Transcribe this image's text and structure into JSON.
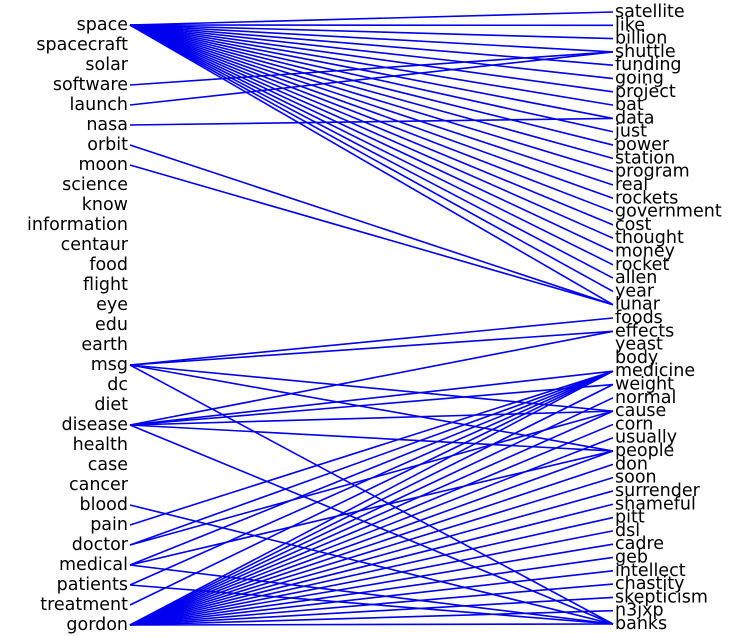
{
  "diagram": {
    "link_color": "#0000ee",
    "text_color": "#000000",
    "left_terms": [
      "space",
      "spacecraft",
      "solar",
      "software",
      "launch",
      "nasa",
      "orbit",
      "moon",
      "science",
      "know",
      "information",
      "centaur",
      "food",
      "flight",
      "eye",
      "edu",
      "earth",
      "msg",
      "dc",
      "diet",
      "disease",
      "health",
      "case",
      "cancer",
      "blood",
      "pain",
      "doctor",
      "medical",
      "patients",
      "treatment",
      "gordon"
    ],
    "right_terms": [
      "satellite",
      "like",
      "billion",
      "shuttle",
      "funding",
      "going",
      "project",
      "bat",
      "data",
      "just",
      "power",
      "station",
      "program",
      "real",
      "rockets",
      "government",
      "cost",
      "thought",
      "money",
      "rocket",
      "allen",
      "year",
      "lunar",
      "foods",
      "effects",
      "yeast",
      "body",
      "medicine",
      "weight",
      "normal",
      "cause",
      "corn",
      "usually",
      "people",
      "don",
      "soon",
      "surrender",
      "shameful",
      "pitt",
      "dsl",
      "cadre",
      "geb",
      "intellect",
      "chastity",
      "skepticism",
      "n3jxp",
      "banks"
    ],
    "links": [
      {
        "from": "space",
        "to": "satellite"
      },
      {
        "from": "space",
        "to": "like"
      },
      {
        "from": "space",
        "to": "billion"
      },
      {
        "from": "space",
        "to": "shuttle"
      },
      {
        "from": "space",
        "to": "funding"
      },
      {
        "from": "space",
        "to": "going"
      },
      {
        "from": "space",
        "to": "project"
      },
      {
        "from": "space",
        "to": "bat"
      },
      {
        "from": "space",
        "to": "data"
      },
      {
        "from": "space",
        "to": "just"
      },
      {
        "from": "space",
        "to": "power"
      },
      {
        "from": "space",
        "to": "station"
      },
      {
        "from": "space",
        "to": "program"
      },
      {
        "from": "space",
        "to": "real"
      },
      {
        "from": "space",
        "to": "rockets"
      },
      {
        "from": "space",
        "to": "government"
      },
      {
        "from": "space",
        "to": "cost"
      },
      {
        "from": "space",
        "to": "thought"
      },
      {
        "from": "space",
        "to": "money"
      },
      {
        "from": "space",
        "to": "rocket"
      },
      {
        "from": "space",
        "to": "allen"
      },
      {
        "from": "space",
        "to": "year"
      },
      {
        "from": "space",
        "to": "lunar"
      },
      {
        "from": "software",
        "to": "shuttle"
      },
      {
        "from": "launch",
        "to": "shuttle"
      },
      {
        "from": "nasa",
        "to": "data"
      },
      {
        "from": "orbit",
        "to": "lunar"
      },
      {
        "from": "moon",
        "to": "lunar"
      },
      {
        "from": "msg",
        "to": "foods"
      },
      {
        "from": "msg",
        "to": "effects"
      },
      {
        "from": "msg",
        "to": "cause"
      },
      {
        "from": "msg",
        "to": "people"
      },
      {
        "from": "msg",
        "to": "banks"
      },
      {
        "from": "disease",
        "to": "effects"
      },
      {
        "from": "disease",
        "to": "medicine"
      },
      {
        "from": "disease",
        "to": "weight"
      },
      {
        "from": "disease",
        "to": "cause"
      },
      {
        "from": "disease",
        "to": "people"
      },
      {
        "from": "disease",
        "to": "banks"
      },
      {
        "from": "blood",
        "to": "banks"
      },
      {
        "from": "pain",
        "to": "medicine"
      },
      {
        "from": "doctor",
        "to": "medicine"
      },
      {
        "from": "doctor",
        "to": "cause"
      },
      {
        "from": "medical",
        "to": "medicine"
      },
      {
        "from": "medical",
        "to": "people"
      },
      {
        "from": "medical",
        "to": "banks"
      },
      {
        "from": "patients",
        "to": "medicine"
      },
      {
        "from": "patients",
        "to": "banks"
      },
      {
        "from": "treatment",
        "to": "medicine"
      },
      {
        "from": "gordon",
        "to": "medicine"
      },
      {
        "from": "gordon",
        "to": "weight"
      },
      {
        "from": "gordon",
        "to": "normal"
      },
      {
        "from": "gordon",
        "to": "cause"
      },
      {
        "from": "gordon",
        "to": "corn"
      },
      {
        "from": "gordon",
        "to": "usually"
      },
      {
        "from": "gordon",
        "to": "people"
      },
      {
        "from": "gordon",
        "to": "don"
      },
      {
        "from": "gordon",
        "to": "soon"
      },
      {
        "from": "gordon",
        "to": "surrender"
      },
      {
        "from": "gordon",
        "to": "shameful"
      },
      {
        "from": "gordon",
        "to": "pitt"
      },
      {
        "from": "gordon",
        "to": "dsl"
      },
      {
        "from": "gordon",
        "to": "cadre"
      },
      {
        "from": "gordon",
        "to": "geb"
      },
      {
        "from": "gordon",
        "to": "intellect"
      },
      {
        "from": "gordon",
        "to": "chastity"
      },
      {
        "from": "gordon",
        "to": "skepticism"
      },
      {
        "from": "gordon",
        "to": "n3jxp"
      },
      {
        "from": "gordon",
        "to": "banks"
      }
    ]
  }
}
